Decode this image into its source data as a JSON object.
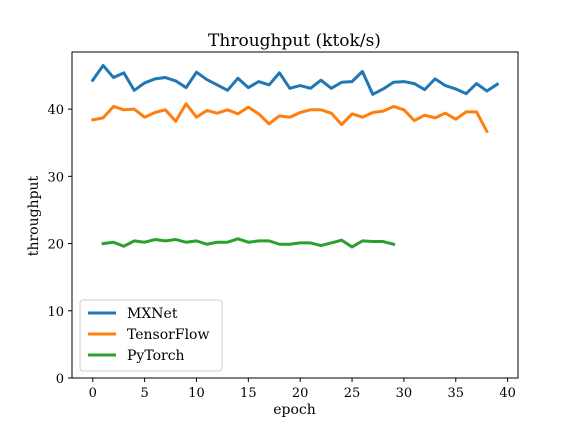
{
  "chart_data": {
    "type": "line",
    "title": "Throughput (ktok/s)",
    "xlabel": "epoch",
    "ylabel": "throughput",
    "xlim": [
      -2,
      41
    ],
    "ylim": [
      0,
      48.5
    ],
    "xticks": [
      0,
      5,
      10,
      15,
      20,
      25,
      30,
      35,
      40
    ],
    "yticks": [
      0,
      10,
      20,
      30,
      40
    ],
    "grid": false,
    "legend_position": "lower-left",
    "series": [
      {
        "name": "MXNet",
        "color": "#1f77b4",
        "x": [
          0,
          1,
          2,
          3,
          4,
          5,
          6,
          7,
          8,
          9,
          10,
          11,
          12,
          13,
          14,
          15,
          16,
          17,
          18,
          19,
          20,
          21,
          22,
          23,
          24,
          25,
          26,
          27,
          28,
          29,
          30,
          31,
          32,
          33,
          34,
          35,
          36,
          37,
          38,
          39
        ],
        "values": [
          44.3,
          46.5,
          44.7,
          45.4,
          42.8,
          43.9,
          44.5,
          44.7,
          44.2,
          43.2,
          45.5,
          44.4,
          43.6,
          42.8,
          44.6,
          43.2,
          44.1,
          43.6,
          45.4,
          43.1,
          43.5,
          43.1,
          44.3,
          43.1,
          44.0,
          44.1,
          45.6,
          42.2,
          43.0,
          44.0,
          44.1,
          43.8,
          42.9,
          44.5,
          43.5,
          43.0,
          42.3,
          43.8,
          42.7,
          43.7
        ]
      },
      {
        "name": "TensorFlow",
        "color": "#ff7f0e",
        "x": [
          0,
          1,
          2,
          3,
          4,
          5,
          6,
          7,
          8,
          9,
          10,
          11,
          12,
          13,
          14,
          15,
          16,
          17,
          18,
          19,
          20,
          21,
          22,
          23,
          24,
          25,
          26,
          27,
          28,
          29,
          30,
          31,
          32,
          33,
          34,
          35,
          36,
          37,
          38
        ],
        "values": [
          38.4,
          38.7,
          40.4,
          39.9,
          40.0,
          38.8,
          39.5,
          39.9,
          38.2,
          40.8,
          38.8,
          39.8,
          39.4,
          39.9,
          39.3,
          40.3,
          39.3,
          37.8,
          39.0,
          38.8,
          39.5,
          39.9,
          39.9,
          39.4,
          37.7,
          39.3,
          38.8,
          39.5,
          39.7,
          40.4,
          39.9,
          38.3,
          39.1,
          38.7,
          39.4,
          38.5,
          39.6,
          39.6,
          36.7
        ]
      },
      {
        "name": "PyTorch",
        "color": "#2ca02c",
        "x": [
          1,
          2,
          3,
          4,
          5,
          6,
          7,
          8,
          9,
          10,
          11,
          12,
          13,
          14,
          15,
          16,
          17,
          18,
          19,
          20,
          21,
          22,
          23,
          24,
          25,
          26,
          27,
          28,
          29
        ],
        "values": [
          20.0,
          20.2,
          19.6,
          20.4,
          20.2,
          20.6,
          20.4,
          20.6,
          20.2,
          20.4,
          19.9,
          20.2,
          20.2,
          20.7,
          20.2,
          20.4,
          20.4,
          19.9,
          19.9,
          20.1,
          20.1,
          19.7,
          20.1,
          20.5,
          19.5,
          20.4,
          20.3,
          20.3,
          19.9
        ]
      }
    ]
  }
}
